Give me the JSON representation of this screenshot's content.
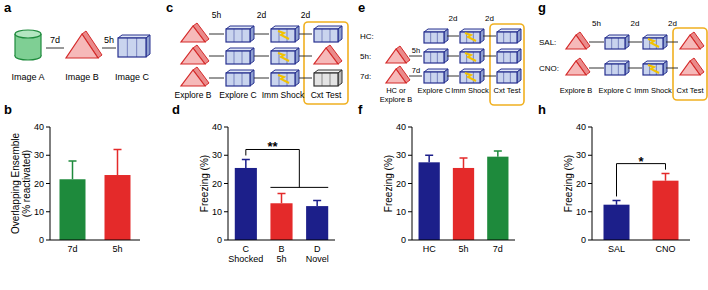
{
  "chart_data": [
    {
      "panel": "b",
      "type": "bar",
      "y_label": "Overlapping Ensemble\n(% reactivated)",
      "categories": [
        "7d",
        "5h"
      ],
      "values": [
        21.5,
        23
      ],
      "errors": [
        6.5,
        9
      ],
      "colors": [
        "#1e8a3c",
        "#e42a2a"
      ],
      "ylim": [
        0,
        40
      ],
      "yticks": [
        0,
        10,
        20,
        30,
        40
      ],
      "annotations": []
    },
    {
      "panel": "d",
      "type": "bar",
      "y_label": "Freezing (%)",
      "categories": [
        "C\nShocked",
        "B\n5h",
        "D\nNovel"
      ],
      "values": [
        25.5,
        13,
        12
      ],
      "errors": [
        3,
        3.5,
        2
      ],
      "colors": [
        "#1c1f8a",
        "#e42a2a",
        "#1c1f8a"
      ],
      "ylim": [
        0,
        40
      ],
      "yticks": [
        0,
        10,
        20,
        30,
        40
      ],
      "annotations": [
        "**"
      ]
    },
    {
      "panel": "f",
      "type": "bar",
      "y_label": "Freezing (%)",
      "categories": [
        "HC",
        "5h",
        "7d"
      ],
      "values": [
        27.5,
        25.5,
        29.5
      ],
      "errors": [
        2.5,
        3.5,
        2
      ],
      "colors": [
        "#1c1f8a",
        "#e42a2a",
        "#1e8a3c"
      ],
      "ylim": [
        0,
        40
      ],
      "yticks": [
        0,
        10,
        20,
        30,
        40
      ],
      "annotations": []
    },
    {
      "panel": "h",
      "type": "bar",
      "y_label": "Freezing (%)",
      "categories": [
        "SAL",
        "CNO"
      ],
      "values": [
        12.5,
        21
      ],
      "errors": [
        1.5,
        2.5
      ],
      "colors": [
        "#1c1f8a",
        "#e42a2a"
      ],
      "ylim": [
        0,
        40
      ],
      "yticks": [
        0,
        10,
        20,
        30,
        40
      ],
      "annotations": [
        "*"
      ]
    }
  ],
  "diagrams": [
    {
      "panel": "a",
      "labels": [
        "Image A",
        "Image B",
        "Image C"
      ],
      "intervals": [
        "7d",
        "5h"
      ]
    },
    {
      "panel": "c",
      "steps": [
        "Explore B",
        "Explore C",
        "Imm Shock",
        "Cxt Test"
      ],
      "intervals": [
        "5h",
        "2d",
        "2d"
      ]
    },
    {
      "panel": "e",
      "rows": [
        "HC:",
        "5h:",
        "7d:"
      ],
      "steps": [
        "HC or Explore B",
        "Explore C",
        "Imm Shock",
        "Cxt Test"
      ],
      "intervals": [
        "2d",
        "2d"
      ],
      "row_intervals": [
        "5h",
        "7d"
      ]
    },
    {
      "panel": "g",
      "rows": [
        "SAL:",
        "CNO:"
      ],
      "steps": [
        "Explore B",
        "Explore C",
        "Imm Shock",
        "Cxt Test"
      ],
      "intervals": [
        "5h",
        "2d",
        "2d"
      ]
    }
  ]
}
